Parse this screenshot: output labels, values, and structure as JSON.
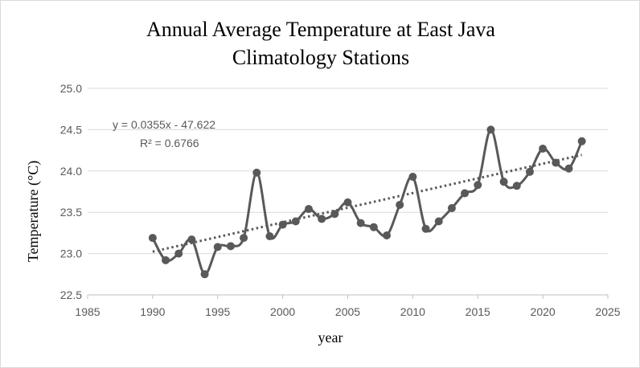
{
  "chart_data": {
    "type": "scatter",
    "title_lines": [
      "Annual Average Temperature at East Java",
      "Climatology Stations"
    ],
    "xlabel": "year",
    "ylabel": "Temperature (°C)",
    "xlim": [
      1985,
      2025
    ],
    "ylim": [
      22.5,
      25.0
    ],
    "xticks": [
      1985,
      1990,
      1995,
      2000,
      2005,
      2010,
      2015,
      2020,
      2025
    ],
    "yticks": [
      22.5,
      23.0,
      23.5,
      24.0,
      24.5,
      25.0
    ],
    "ytick_labels": [
      "22.5",
      "23.0",
      "23.5",
      "24.0",
      "24.5",
      "25.0"
    ],
    "grid": "horizontal",
    "series": [
      {
        "style": "smoothed line with markers",
        "color": "#595959",
        "x": [
          1990,
          1991,
          1992,
          1993,
          1994,
          1995,
          1996,
          1997,
          1998,
          1999,
          2000,
          2001,
          2002,
          2003,
          2004,
          2005,
          2006,
          2007,
          2008,
          2009,
          2010,
          2011,
          2012,
          2013,
          2014,
          2015,
          2016,
          2017,
          2018,
          2019,
          2020,
          2021,
          2022,
          2023
        ],
        "y": [
          23.19,
          22.92,
          23.0,
          23.17,
          22.75,
          23.08,
          23.09,
          23.19,
          23.98,
          23.21,
          23.35,
          23.39,
          23.54,
          23.42,
          23.48,
          23.62,
          23.37,
          23.32,
          23.22,
          23.59,
          23.93,
          23.3,
          23.39,
          23.55,
          23.73,
          23.83,
          24.5,
          23.87,
          23.82,
          23.99,
          24.27,
          24.1,
          24.03,
          24.36
        ]
      }
    ],
    "trendline": {
      "style": "dotted linear",
      "color": "#595959",
      "slope": 0.0355,
      "intercept": -47.622,
      "x_range": [
        1990,
        2023
      ],
      "equation_label": "y = 0.0355x - 47.622",
      "r2_label": "R² = 0.6766"
    }
  }
}
